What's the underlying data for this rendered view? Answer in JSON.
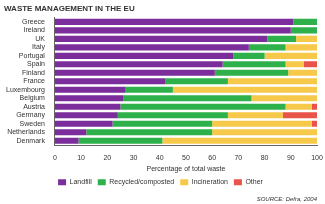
{
  "chart_data": {
    "type": "bar",
    "orientation": "horizontal",
    "stacked": true,
    "title": "WASTE MANAGEMENT IN THE EU",
    "source": "SOURCE: Defra, 2004",
    "x_label": "Percentage of total waste",
    "categories": [
      "Greece",
      "Ireland",
      "UK",
      "Italy",
      "Portugal",
      "Spain",
      "Finland",
      "France",
      "Luxembourg",
      "Belgium",
      "Austria",
      "Germany",
      "Sweden",
      "Netherlands",
      "Denmark"
    ],
    "series": [
      {
        "name": "Landfill",
        "color": "#7b2d9b",
        "values": [
          91,
          90,
          81,
          74,
          68,
          64,
          61,
          42,
          27,
          26,
          25,
          24,
          22,
          12,
          9
        ]
      },
      {
        "name": "Recycled/composted",
        "color": "#2eb04b",
        "values": [
          9,
          10,
          11,
          14,
          12,
          24,
          28,
          24,
          18,
          49,
          63,
          42,
          38,
          48,
          32
        ]
      },
      {
        "name": "Incineration",
        "color": "#f6c94a",
        "values": [
          0,
          0,
          8,
          12,
          20,
          7,
          11,
          34,
          55,
          25,
          10,
          21,
          38,
          40,
          59
        ]
      },
      {
        "name": "Other",
        "color": "#e8534a",
        "values": [
          0,
          0,
          0,
          0,
          0,
          5,
          0,
          0,
          0,
          0,
          2,
          13,
          2,
          0,
          0
        ]
      }
    ],
    "xlim": [
      0,
      100
    ],
    "xticks": [
      0,
      10,
      20,
      30,
      40,
      50,
      60,
      70,
      80,
      90,
      100
    ],
    "grid": false,
    "legend": "bottom"
  }
}
